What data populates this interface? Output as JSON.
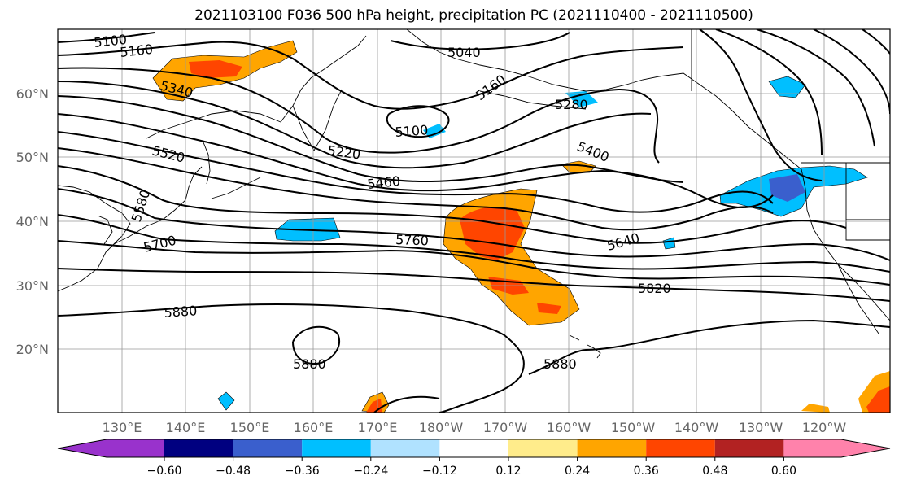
{
  "title": "2021103100 F036 500 hPa height, precipitation PC (2021110400 - 2021110500)",
  "lat_labels": [
    "60°N",
    "50°N",
    "40°N",
    "30°N",
    "20°N"
  ],
  "lon_labels": [
    "130°E",
    "140°E",
    "150°E",
    "160°E",
    "170°E",
    "180°W",
    "170°W",
    "160°W",
    "150°W",
    "140°W",
    "130°W",
    "120°W"
  ],
  "contour_labels": [
    "5100",
    "5160",
    "5340",
    "5520",
    "5580",
    "5700",
    "5100",
    "5220",
    "5460",
    "5760",
    "5880",
    "5880",
    "5040",
    "5160",
    "5280",
    "5400",
    "5640",
    "5820",
    "5880",
    "5880"
  ],
  "colorbar": {
    "ticks": [
      "−0.60",
      "−0.48",
      "−0.36",
      "−0.24",
      "−0.12",
      "0.12",
      "0.24",
      "0.36",
      "0.48",
      "0.60"
    ],
    "colors": [
      "#9932cc",
      "#000080",
      "#3a5fcd",
      "#00bfff",
      "#b0e2ff",
      "#ffffff",
      "#ffec8b",
      "#ffa500",
      "#ff4500",
      "#b22222",
      "#ff82ab"
    ]
  }
}
